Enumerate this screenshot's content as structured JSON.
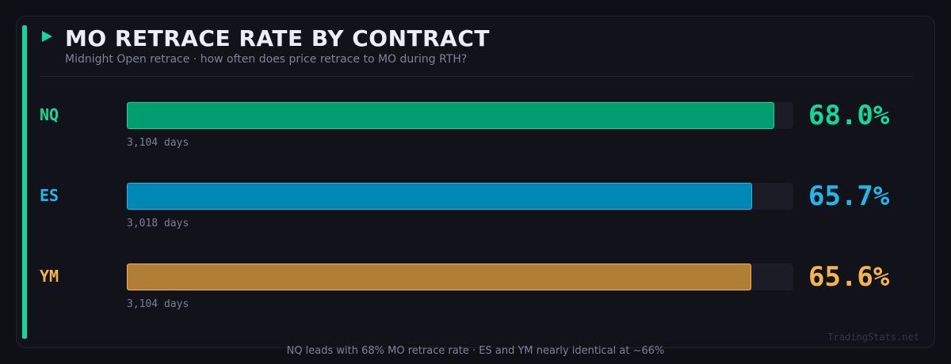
{
  "header": {
    "title": "MO RETRACE RATE BY CONTRACT",
    "subtitle": "Midnight Open retrace  ·  how often does price retrace to MO during RTH?"
  },
  "chart_data": {
    "type": "bar",
    "orientation": "horizontal",
    "title": "MO RETRACE RATE BY CONTRACT",
    "unit": "%",
    "xlim": [
      0,
      70
    ],
    "categories": [
      "NQ",
      "ES",
      "YM"
    ],
    "values": [
      68.0,
      65.7,
      65.6
    ],
    "value_labels": [
      "68.0%",
      "65.7%",
      "65.6%"
    ],
    "sample_labels": [
      "3,104 days",
      "3,018 days",
      "3,104 days"
    ],
    "colors": [
      "#009e6e",
      "#0088b4",
      "#b07e35"
    ],
    "label_colors": [
      "#13d89a",
      "#1fb8ea",
      "#f3b64e"
    ]
  },
  "watermark": "TradingStats.net",
  "footer": "NQ leads with 68% MO retrace rate  ·  ES and YM nearly identical at ~66%",
  "theme": {
    "accent": "#13d89a",
    "background": "#0f0f16"
  }
}
